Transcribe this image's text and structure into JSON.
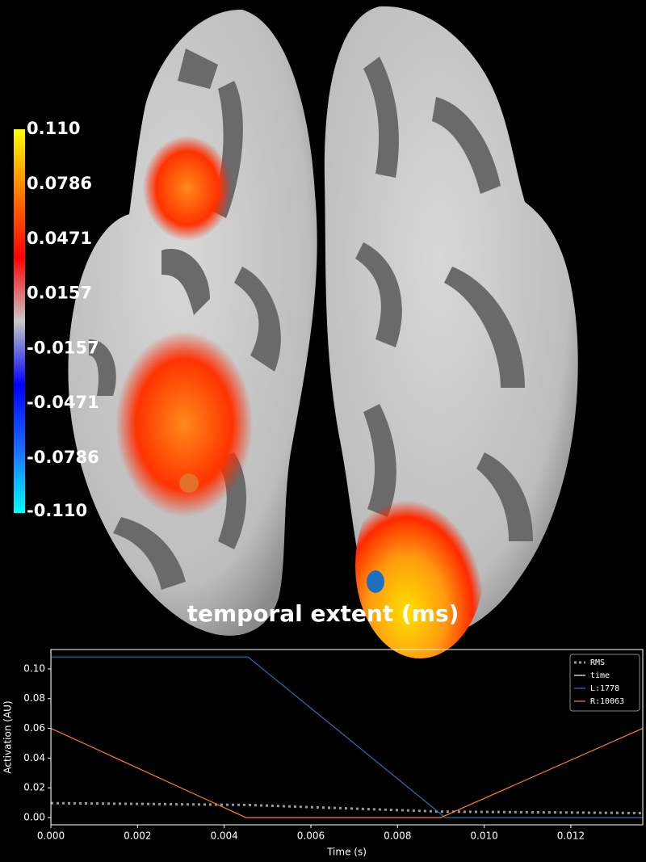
{
  "chart_data": [
    {
      "type": "colorbar",
      "title": "temporal extent (ms)",
      "ticks": [
        {
          "value": 0.11,
          "label": "0.110"
        },
        0.0786,
        0.0471,
        0.0157,
        -0.0157,
        -0.0471,
        -0.0786,
        {
          "value": -0.11,
          "label": "-0.110"
        }
      ],
      "lim": [
        -0.11,
        0.11
      ],
      "colors": [
        "#00ffff",
        "#1a6cff",
        "#0000ff",
        "#c8c8c8",
        "#ff0000",
        "#ff7a00",
        "#ffff00"
      ]
    },
    {
      "type": "line",
      "x_label": "Time (s)",
      "y_label": "Activation (AU)",
      "xlim": [
        0,
        0.01366
      ],
      "ylim": [
        -0.0049,
        0.113
      ],
      "xticks": [
        {
          "value": 0,
          "label": "0.000"
        },
        {
          "value": 0.002,
          "label": "0.002"
        },
        {
          "value": 0.004,
          "label": "0.004"
        },
        {
          "value": 0.006,
          "label": "0.006"
        },
        {
          "value": 0.008,
          "label": "0.008"
        },
        {
          "value": 0.01,
          "label": "0.010"
        },
        {
          "value": 0.012,
          "label": "0.012"
        }
      ],
      "yticks": [
        {
          "value": 0,
          "label": "0.00"
        },
        {
          "value": 0.02,
          "label": "0.02"
        },
        {
          "value": 0.04,
          "label": "0.04"
        },
        {
          "value": 0.06,
          "label": "0.06"
        },
        {
          "value": 0.08,
          "label": "0.08"
        },
        {
          "value": 0.1,
          "label": "0.10"
        }
      ],
      "legend": "upper right",
      "series": [
        {
          "name": "RMS",
          "color": "#999999",
          "style": "dotted",
          "x": [
            0,
            0.0045,
            0.009,
            0.01366
          ],
          "values": [
            0.0097,
            0.0085,
            0.004,
            0.003
          ]
        },
        {
          "name": "time",
          "color": "#ffffff",
          "style": "vertical",
          "x": [
            0,
            0
          ],
          "values": [
            -0.0049,
            0.113
          ]
        },
        {
          "name": "L:1778",
          "color": "#1f77b4",
          "style": "solid",
          "x": [
            0,
            0.00455,
            0.0091,
            0.01366
          ],
          "values": [
            0.108,
            0.108,
            0,
            0
          ]
        },
        {
          "name": "R:10063",
          "color": "#ff7f0e",
          "style": "solid",
          "x": [
            0,
            0.0045,
            0.009,
            0.01366
          ],
          "values": [
            0.06,
            0,
            0,
            0.06
          ]
        }
      ]
    }
  ]
}
